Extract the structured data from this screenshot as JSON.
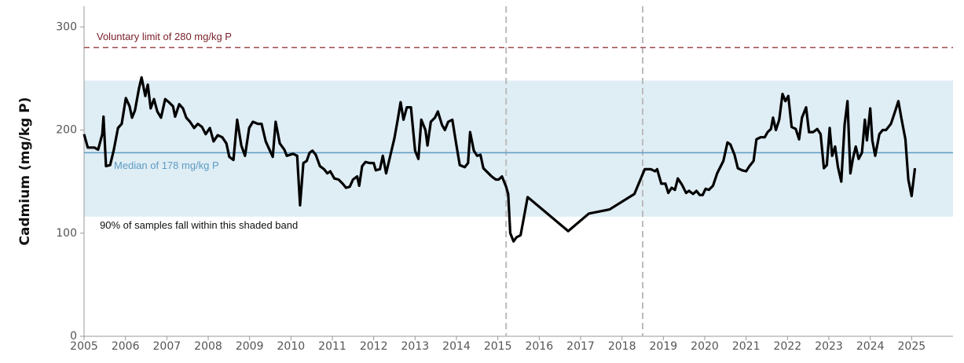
{
  "chart_data": {
    "type": "line",
    "y_label": "Cadmium (mg/kg P)",
    "color": "#000000",
    "xlim": [
      2005,
      2026
    ],
    "ylim": [
      0,
      320
    ],
    "xticks": [
      2005,
      2006,
      2007,
      2008,
      2009,
      2010,
      2011,
      2012,
      2013,
      2014,
      2015,
      2016,
      2017,
      2018,
      2019,
      2020,
      2021,
      2022,
      2023,
      2024,
      2025
    ],
    "yticks": [
      0,
      100,
      200,
      300
    ],
    "band": {
      "range": [
        116,
        248
      ],
      "label": "90% of samples fall within this shaded band",
      "color": "#dfedf4"
    },
    "median": {
      "value": 178,
      "label": "Median of 178 mg/kg P",
      "color": "#5d9cc4"
    },
    "limit": {
      "value": 280,
      "label": "Voluntary limit of 280 mg/kg P",
      "color": "#9b4a4a"
    },
    "vlines": [
      2015.2,
      2018.5
    ],
    "x": [
      2005.0,
      2005.09,
      2005.25,
      2005.34,
      2005.44,
      2005.47,
      2005.53,
      2005.63,
      2005.72,
      2005.82,
      2005.91,
      2006.01,
      2006.1,
      2006.16,
      2006.23,
      2006.33,
      2006.39,
      2006.48,
      2006.54,
      2006.61,
      2006.69,
      2006.77,
      2006.86,
      2006.96,
      2007.05,
      2007.15,
      2007.2,
      2007.3,
      2007.39,
      2007.47,
      2007.56,
      2007.66,
      2007.75,
      2007.85,
      2007.94,
      2008.04,
      2008.13,
      2008.23,
      2008.34,
      2008.44,
      2008.51,
      2008.61,
      2008.7,
      2008.8,
      2008.89,
      2008.99,
      2009.08,
      2009.2,
      2009.29,
      2009.39,
      2009.48,
      2009.56,
      2009.63,
      2009.73,
      2009.84,
      2009.9,
      2010.05,
      2010.15,
      2010.22,
      2010.3,
      2010.38,
      2010.45,
      2010.52,
      2010.6,
      2010.7,
      2010.8,
      2010.88,
      2010.95,
      2011.05,
      2011.15,
      2011.25,
      2011.33,
      2011.42,
      2011.5,
      2011.6,
      2011.65,
      2011.72,
      2011.8,
      2011.9,
      2012.0,
      2012.05,
      2012.15,
      2012.22,
      2012.3,
      2012.4,
      2012.5,
      2012.58,
      2012.65,
      2012.72,
      2012.8,
      2012.9,
      2013.0,
      2013.08,
      2013.15,
      2013.25,
      2013.3,
      2013.38,
      2013.48,
      2013.55,
      2013.65,
      2013.72,
      2013.8,
      2013.9,
      2014.0,
      2014.08,
      2014.2,
      2014.28,
      2014.33,
      2014.42,
      2014.5,
      2014.58,
      2014.65,
      2014.75,
      2014.85,
      2014.95,
      2015.02,
      2015.1,
      2015.2,
      2015.25,
      2015.3,
      2015.38,
      2015.45,
      2015.55,
      2015.72,
      2016.7,
      2017.2,
      2017.7,
      2018.3,
      2018.55,
      2018.7,
      2018.8,
      2018.85,
      2018.95,
      2019.05,
      2019.12,
      2019.2,
      2019.28,
      2019.35,
      2019.45,
      2019.55,
      2019.62,
      2019.72,
      2019.8,
      2019.88,
      2019.95,
      2020.02,
      2020.1,
      2020.2,
      2020.3,
      2020.45,
      2020.55,
      2020.62,
      2020.72,
      2020.8,
      2020.9,
      2021.0,
      2021.08,
      2021.18,
      2021.25,
      2021.35,
      2021.45,
      2021.52,
      2021.6,
      2021.65,
      2021.72,
      2021.8,
      2021.88,
      2021.95,
      2022.02,
      2022.1,
      2022.2,
      2022.28,
      2022.35,
      2022.45,
      2022.52,
      2022.62,
      2022.72,
      2022.8,
      2022.88,
      2022.95,
      2023.02,
      2023.08,
      2023.15,
      2023.22,
      2023.3,
      2023.38,
      2023.45,
      2023.52,
      2023.58,
      2023.65,
      2023.72,
      2023.8,
      2023.87,
      2023.92,
      2024.0,
      2024.05,
      2024.12,
      2024.22,
      2024.3,
      2024.38,
      2024.5,
      2024.6,
      2024.68,
      2024.75,
      2024.85,
      2024.92,
      2025.0,
      2025.08
    ],
    "values": [
      196,
      183,
      183,
      181,
      196,
      213,
      165,
      166,
      181,
      202,
      206,
      231,
      223,
      212,
      219,
      241,
      251,
      233,
      244,
      221,
      230,
      218,
      212,
      230,
      227,
      223,
      213,
      225,
      221,
      212,
      208,
      202,
      206,
      203,
      196,
      202,
      189,
      195,
      193,
      187,
      174,
      171,
      210,
      185,
      175,
      202,
      208,
      206,
      206,
      189,
      181,
      174,
      208,
      187,
      181,
      175,
      177,
      175,
      127,
      168,
      170,
      178,
      180,
      176,
      165,
      162,
      158,
      160,
      153,
      152,
      148,
      144,
      145,
      152,
      155,
      146,
      165,
      169,
      168,
      168,
      161,
      162,
      175,
      158,
      175,
      192,
      210,
      227,
      210,
      222,
      222,
      180,
      172,
      210,
      200,
      185,
      208,
      212,
      218,
      205,
      200,
      208,
      210,
      185,
      166,
      164,
      168,
      198,
      180,
      175,
      176,
      163,
      159,
      155,
      152,
      152,
      155,
      145,
      138,
      100,
      92,
      96,
      98,
      135,
      102,
      119,
      123,
      138,
      162,
      162,
      160,
      162,
      148,
      148,
      139,
      144,
      142,
      153,
      147,
      139,
      141,
      138,
      141,
      137,
      137,
      143,
      142,
      146,
      158,
      170,
      188,
      186,
      176,
      163,
      161,
      160,
      165,
      170,
      191,
      193,
      193,
      198,
      201,
      212,
      200,
      210,
      235,
      228,
      233,
      203,
      201,
      191,
      212,
      222,
      198,
      198,
      201,
      196,
      163,
      166,
      202,
      175,
      184,
      164,
      150,
      205,
      228,
      158,
      172,
      184,
      172,
      178,
      210,
      190,
      221,
      190,
      175,
      196,
      200,
      200,
      206,
      218,
      228,
      212,
      191,
      152,
      136,
      163
    ]
  }
}
